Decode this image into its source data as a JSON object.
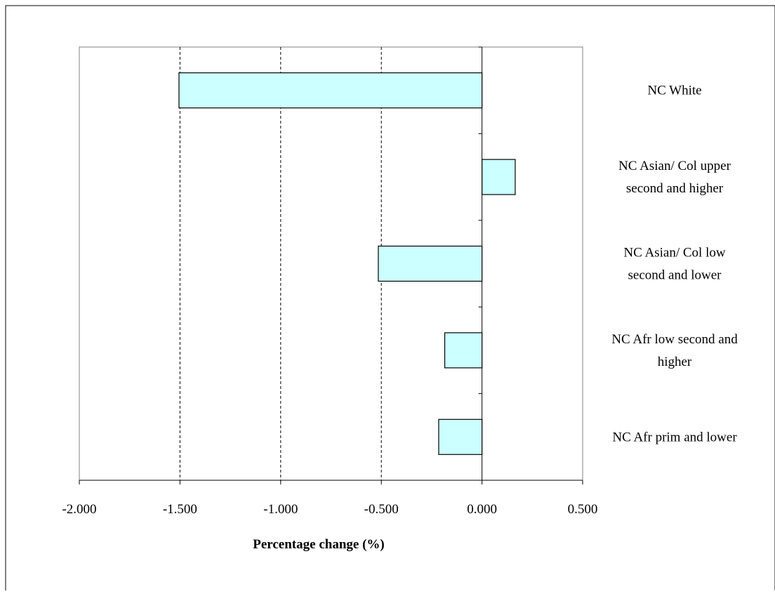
{
  "chart_data": {
    "type": "bar",
    "orientation": "horizontal",
    "categories": [
      [
        "NC White"
      ],
      [
        "NC Asian/ Col upper",
        "second and higher"
      ],
      [
        "NC Asian/ Col low",
        "second and lower"
      ],
      [
        "NC Afr low second and",
        "higher"
      ],
      [
        "NC Afr prim and lower"
      ]
    ],
    "values": [
      -1.505,
      0.165,
      -0.515,
      -0.185,
      -0.215
    ],
    "xlabel": "Percentage change (%)",
    "xlim": [
      -2.0,
      0.5
    ],
    "xticks": [
      -2.0,
      -1.5,
      -1.0,
      -0.5,
      0.0,
      0.5
    ],
    "tick_labels": [
      "-2.000",
      "-1.500",
      "-1.000",
      "-0.500",
      "0.000",
      "0.500"
    ],
    "gridlines": "vertical dashed",
    "legend": "none",
    "bar_color": "#ccffff",
    "bar_stroke": "#000000"
  }
}
